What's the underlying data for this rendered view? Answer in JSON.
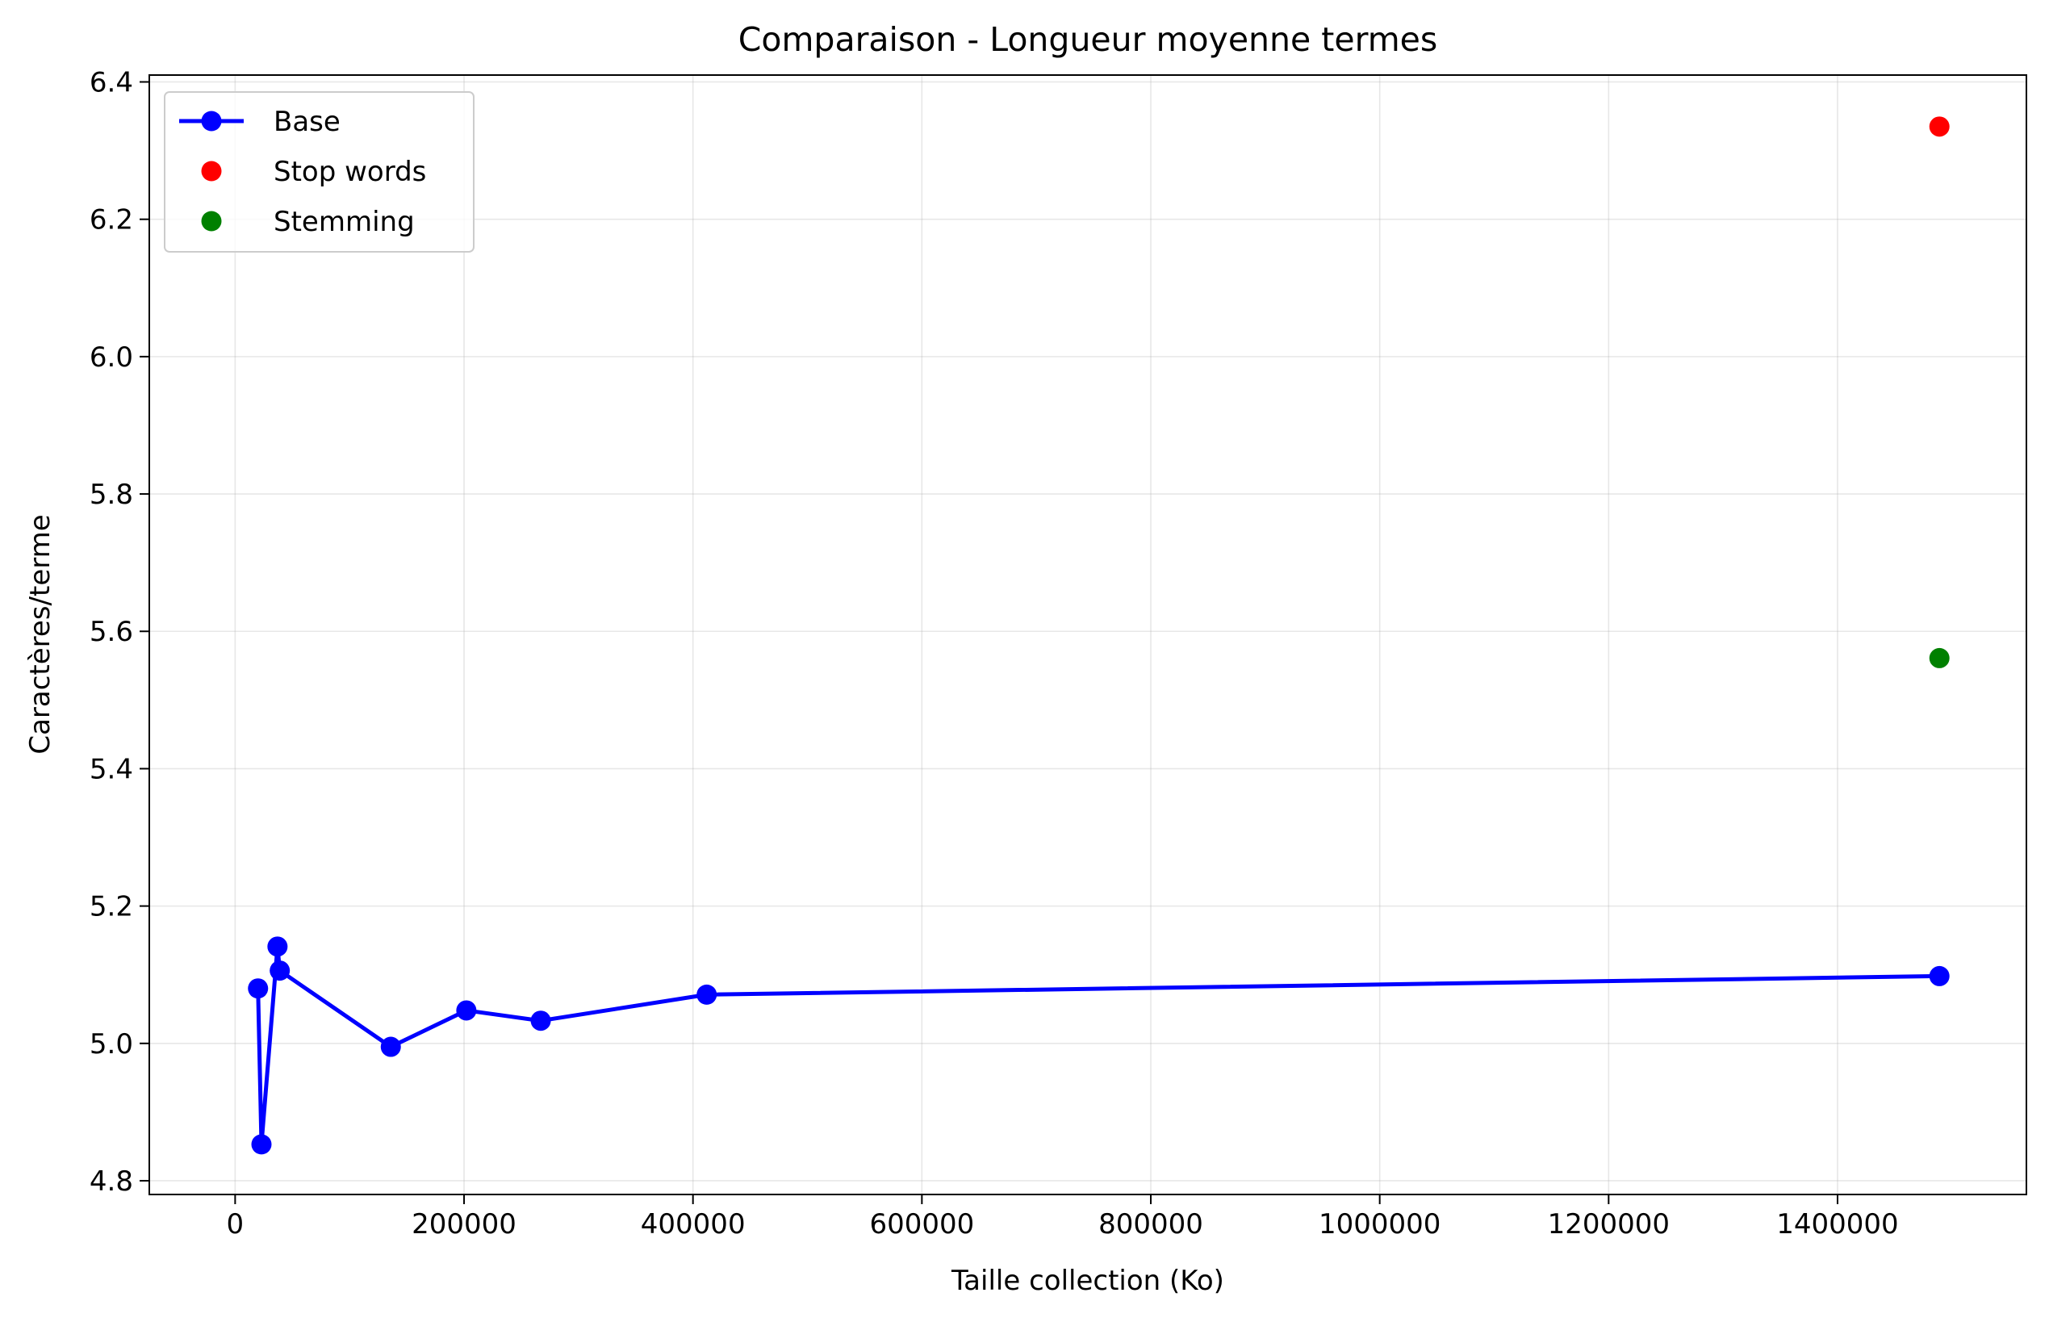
{
  "chart_data": {
    "type": "line",
    "title": "Comparaison - Longueur moyenne termes",
    "xlabel": "Taille collection (Ko)",
    "ylabel": "Caractères/terme",
    "xlim": [
      -75000,
      1565000
    ],
    "ylim": [
      4.78,
      6.41
    ],
    "xticks": [
      0,
      200000,
      400000,
      600000,
      800000,
      1000000,
      1200000,
      1400000
    ],
    "xtick_labels": [
      "0",
      "200000",
      "400000",
      "600000",
      "800000",
      "1000000",
      "1200000",
      "1400000"
    ],
    "yticks": [
      4.8,
      5.0,
      5.2,
      5.4,
      5.6,
      5.8,
      6.0,
      6.2,
      6.4
    ],
    "ytick_labels": [
      "4.8",
      "5.0",
      "5.2",
      "5.4",
      "5.6",
      "5.8",
      "6.0",
      "6.2",
      "6.4"
    ],
    "grid": true,
    "legend_position": "top-left",
    "series": [
      {
        "name": "Base",
        "color": "#0000ff",
        "style": "line-markers",
        "x": [
          20000,
          23000,
          37000,
          39000,
          136000,
          202000,
          267000,
          412000,
          1489000
        ],
        "y": [
          5.08,
          4.853,
          5.141,
          5.106,
          4.995,
          5.048,
          5.033,
          5.071,
          5.098
        ]
      },
      {
        "name": "Stop words",
        "color": "#ff0000",
        "style": "markers",
        "x": [
          1489000
        ],
        "y": [
          6.335
        ]
      },
      {
        "name": "Stemming",
        "color": "#008000",
        "style": "markers",
        "x": [
          1489000
        ],
        "y": [
          5.561
        ]
      }
    ]
  }
}
